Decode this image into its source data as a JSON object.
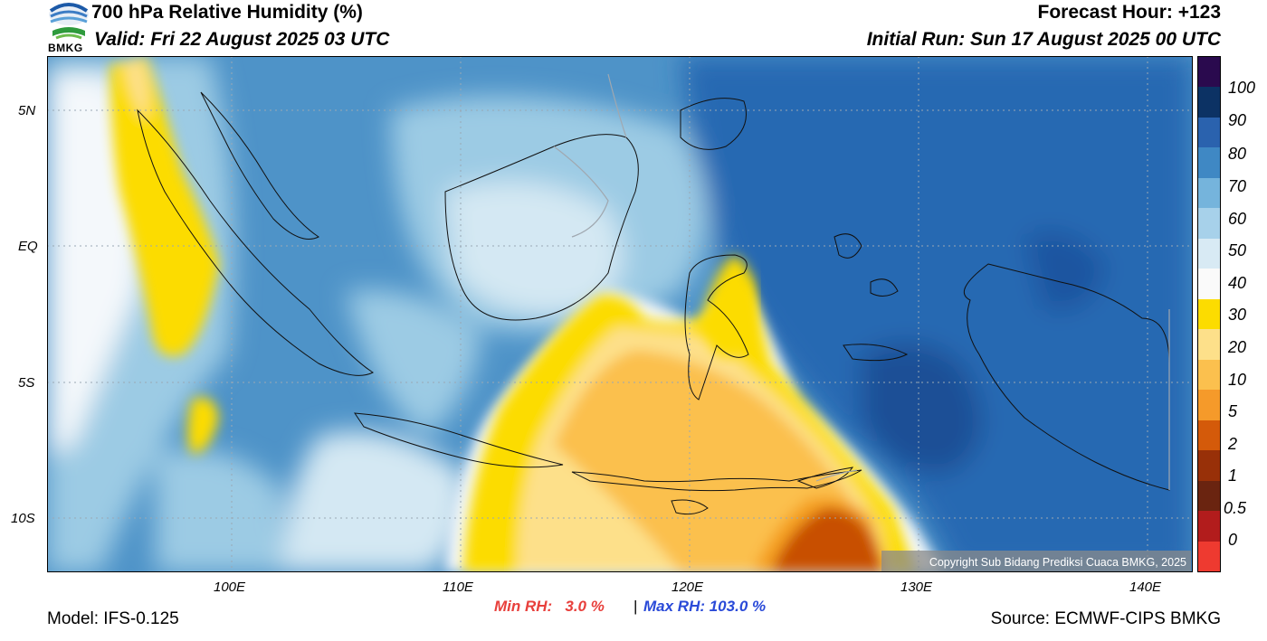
{
  "header": {
    "logo_text": "BMKG",
    "title": "700 hPa Relative Humidity (%)",
    "valid": "Valid: Fri 22 August 2025 03 UTC",
    "forecast_hour": "Forecast Hour: +123",
    "initial_run": "Initial Run: Sun 17 August 2025 00 UTC"
  },
  "map": {
    "lat_ticks": [
      "5N",
      "EQ",
      "5S",
      "10S"
    ],
    "lon_ticks": [
      "100E",
      "110E",
      "120E",
      "130E",
      "140E"
    ],
    "copyright": "Copyright Sub Bidang Prediksi Cuaca BMKG, 2025",
    "colors": {
      "very_dry": "#c85000",
      "dry": "#f5a020",
      "moderate_dry": "#fbc04e",
      "light_dry": "#fde08a",
      "yellow": "#fcdc00",
      "white": "#f4f8fb",
      "pale_blue": "#d4e8f3",
      "light_blue": "#9ccbe4",
      "mid_blue": "#4e93c8",
      "deep_blue": "#2869b2",
      "navy": "#0c3e7a"
    }
  },
  "colorbar": {
    "labels": [
      "100",
      "90",
      "80",
      "70",
      "60",
      "50",
      "40",
      "30",
      "20",
      "10",
      "5",
      "2",
      "1",
      "0.5",
      "0"
    ],
    "colors": [
      "#2a0a4e",
      "#0c3264",
      "#2a62ae",
      "#3f88c4",
      "#75b4dc",
      "#a7d1ea",
      "#d8eaf4",
      "#fafafa",
      "#fcdc00",
      "#fde08a",
      "#fbc04e",
      "#f59a2a",
      "#d45a0a",
      "#983008",
      "#6a2410",
      "#b21c1c",
      "#ee3a30"
    ]
  },
  "footer": {
    "model": "Model: IFS-0.125",
    "min_rh": "Min RH:   3.0 %",
    "separator": "|",
    "max_rh": "Max RH: 103.0 %",
    "source": "Source: ECMWF-CIPS BMKG"
  }
}
